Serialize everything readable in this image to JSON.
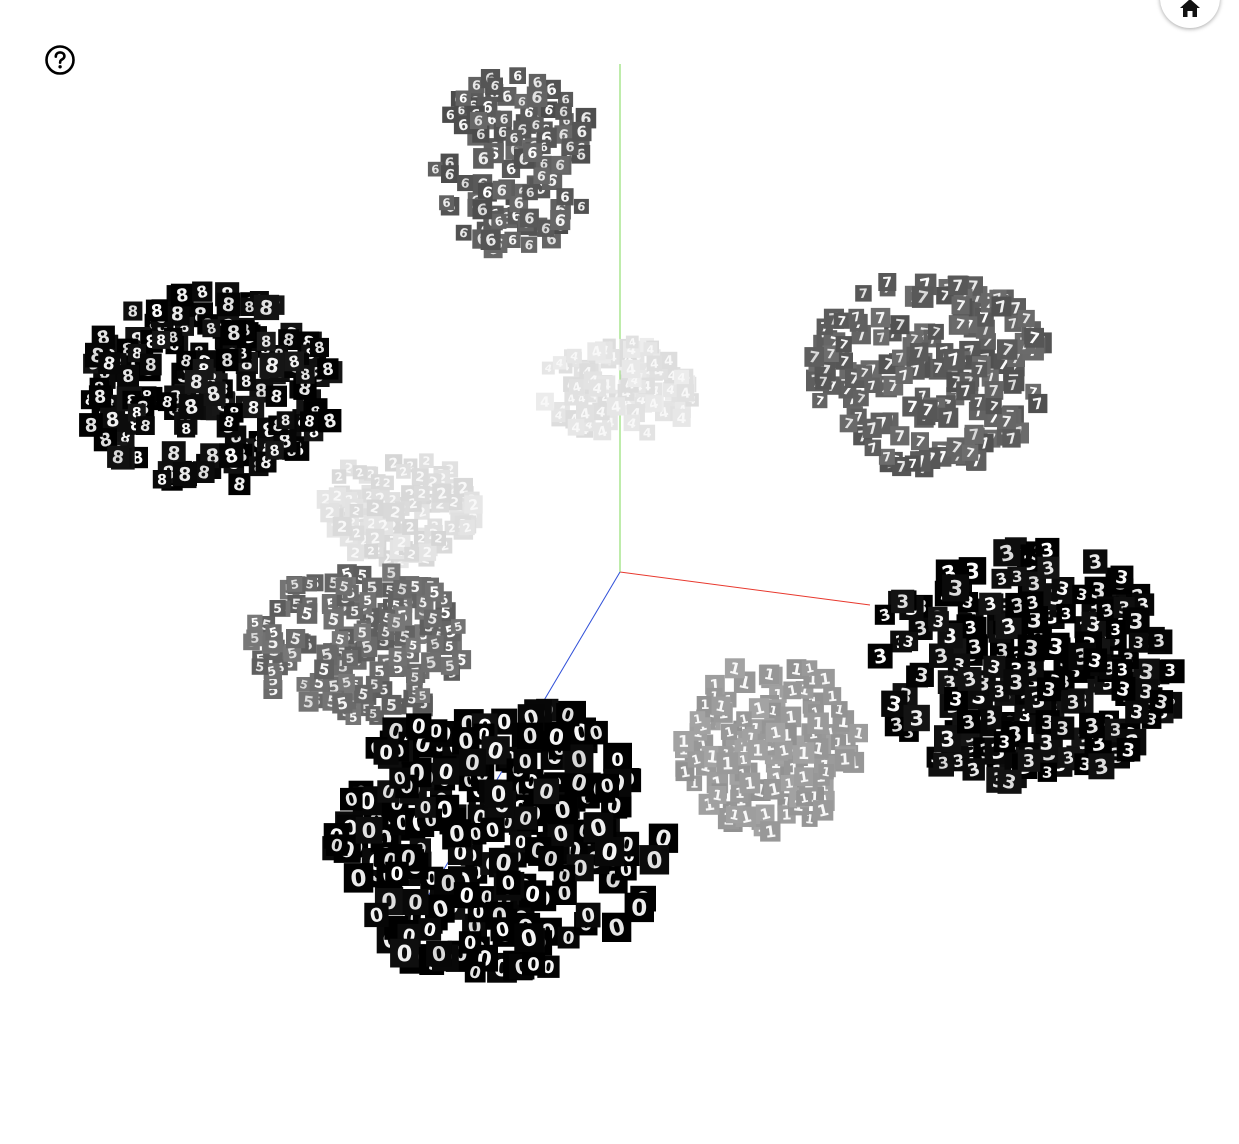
{
  "controls": {
    "help_icon": "question-circle-icon",
    "home_icon": "home-icon"
  },
  "axes": {
    "x_color": "#e8382d",
    "y_color": "#7ed957",
    "z_color": "#2f4fd8"
  },
  "clusters": [
    {
      "digit": "6",
      "tone": "#5a5a5a"
    },
    {
      "digit": "8",
      "tone": "#0a0a0a"
    },
    {
      "digit": "4",
      "tone": "#e4e4e4"
    },
    {
      "digit": "7",
      "tone": "#5f5f5f"
    },
    {
      "digit": "2",
      "tone": "#dedede"
    },
    {
      "digit": "5",
      "tone": "#6a6a6a"
    },
    {
      "digit": "3",
      "tone": "#050505"
    },
    {
      "digit": "0",
      "tone": "#000000"
    },
    {
      "digit": "1",
      "tone": "#9a9a9a"
    }
  ]
}
